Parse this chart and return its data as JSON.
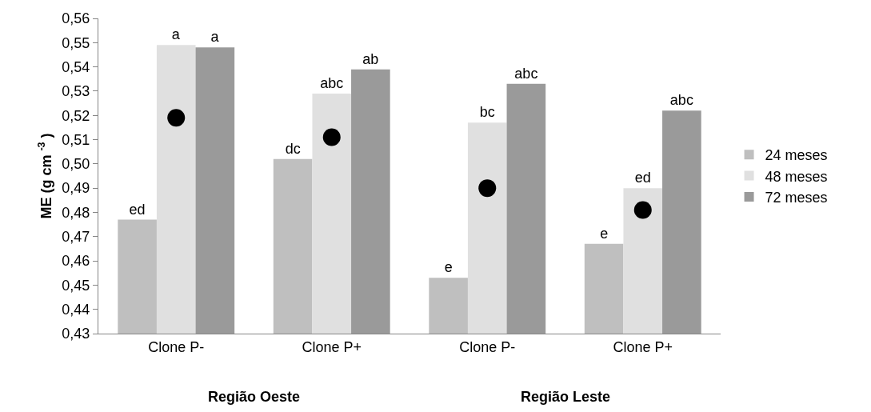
{
  "chart_data": {
    "type": "bar",
    "ylabel": "ME (g cm $^{-3}$ )",
    "categories": [
      "Clone P-",
      "Clone P+",
      "Clone P-",
      "Clone P+"
    ],
    "series": [
      {
        "name": "24 meses",
        "color": "#bfbfbf",
        "values": [
          0.477,
          0.502,
          0.453,
          0.467
        ],
        "value_labels": [
          "ed",
          "dc",
          "e",
          "e"
        ]
      },
      {
        "name": "48 meses",
        "color": "#e0e0e0",
        "values": [
          0.549,
          0.529,
          0.517,
          0.49
        ],
        "value_labels": [
          "a",
          "abc",
          "bc",
          "ed"
        ]
      },
      {
        "name": "72 meses",
        "color": "#9a9a9a",
        "values": [
          0.548,
          0.539,
          0.533,
          0.522
        ],
        "value_labels": [
          "a",
          "ab",
          "abc",
          "abc"
        ]
      },
      {
        "type": "scatter",
        "color": "#000000",
        "marker": "circle",
        "values": [
          0.519,
          0.511,
          0.49,
          0.481
        ]
      }
    ],
    "ylim": [
      0.43,
      0.56
    ],
    "yticks": [
      {
        "value": 0.43,
        "label": "0,43"
      },
      {
        "value": 0.44,
        "label": "0,44"
      },
      {
        "value": 0.45,
        "label": "0,45"
      },
      {
        "value": 0.46,
        "label": "0,46"
      },
      {
        "value": 0.47,
        "label": "0,47"
      },
      {
        "value": 0.48,
        "label": "0,48"
      },
      {
        "value": 0.49,
        "label": "0,49"
      },
      {
        "value": 0.5,
        "label": "0,50"
      },
      {
        "value": 0.51,
        "label": "0,51"
      },
      {
        "value": 0.52,
        "label": "0,52"
      },
      {
        "value": 0.53,
        "label": "0,53"
      },
      {
        "value": 0.54,
        "label": "0,54"
      },
      {
        "value": 0.55,
        "label": "0,55"
      },
      {
        "value": 0.56,
        "label": "0,56"
      }
    ],
    "annotations": [
      "Região Oeste",
      "Região Leste"
    ],
    "grid": false,
    "legend": "right"
  }
}
